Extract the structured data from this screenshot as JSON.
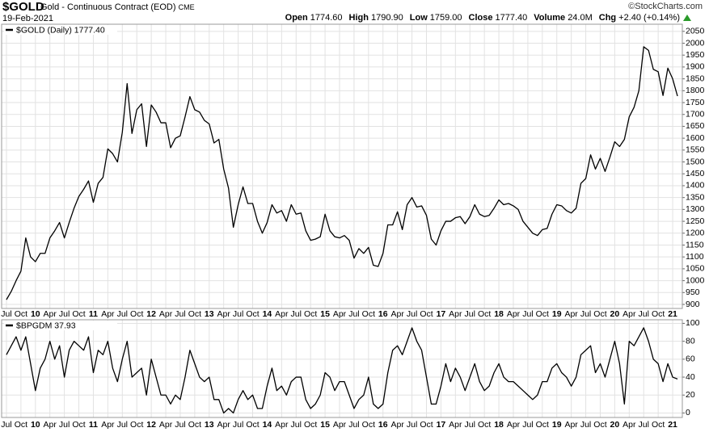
{
  "header": {
    "symbol": "$GOLD",
    "description": "Gold - Continuous Contract (EOD)",
    "exchange": "CME",
    "date": "19-Feb-2021",
    "copyright": "©StockCharts.com",
    "quote": [
      {
        "label": "Open",
        "value": "1774.60"
      },
      {
        "label": "High",
        "value": "1790.90"
      },
      {
        "label": "Low",
        "value": "1759.00"
      },
      {
        "label": "Close",
        "value": "1777.40"
      },
      {
        "label": "Volume",
        "value": "24.0M"
      },
      {
        "label": "Chg",
        "value": "+2.40 (+0.14%)"
      }
    ]
  },
  "chart_data": [
    {
      "type": "line",
      "grid": true,
      "xlim": [
        "2009-06",
        "2021-03"
      ],
      "xticks": [
        {
          "value": "2009-07",
          "label": "Jul"
        },
        {
          "value": "2009-10",
          "label": "Oct"
        },
        {
          "value": "2010-01",
          "label": "10"
        },
        {
          "value": "2010-04",
          "label": "Apr"
        },
        {
          "value": "2010-07",
          "label": "Jul"
        },
        {
          "value": "2010-10",
          "label": "Oct"
        },
        {
          "value": "2011-01",
          "label": "11"
        },
        {
          "value": "2011-04",
          "label": "Apr"
        },
        {
          "value": "2011-07",
          "label": "Jul"
        },
        {
          "value": "2011-10",
          "label": "Oct"
        },
        {
          "value": "2012-01",
          "label": "12"
        },
        {
          "value": "2012-04",
          "label": "Apr"
        },
        {
          "value": "2012-07",
          "label": "Jul"
        },
        {
          "value": "2012-10",
          "label": "Oct"
        },
        {
          "value": "2013-01",
          "label": "13"
        },
        {
          "value": "2013-04",
          "label": "Apr"
        },
        {
          "value": "2013-07",
          "label": "Jul"
        },
        {
          "value": "2013-10",
          "label": "Oct"
        },
        {
          "value": "2014-01",
          "label": "14"
        },
        {
          "value": "2014-04",
          "label": "Apr"
        },
        {
          "value": "2014-07",
          "label": "Jul"
        },
        {
          "value": "2014-10",
          "label": "Oct"
        },
        {
          "value": "2015-01",
          "label": "15"
        },
        {
          "value": "2015-04",
          "label": "Apr"
        },
        {
          "value": "2015-07",
          "label": "Jul"
        },
        {
          "value": "2015-10",
          "label": "Oct"
        },
        {
          "value": "2016-01",
          "label": "16"
        },
        {
          "value": "2016-04",
          "label": "Apr"
        },
        {
          "value": "2016-07",
          "label": "Jul"
        },
        {
          "value": "2016-10",
          "label": "Oct"
        },
        {
          "value": "2017-01",
          "label": "17"
        },
        {
          "value": "2017-04",
          "label": "Apr"
        },
        {
          "value": "2017-07",
          "label": "Jul"
        },
        {
          "value": "2017-10",
          "label": "Oct"
        },
        {
          "value": "2018-01",
          "label": "18"
        },
        {
          "value": "2018-04",
          "label": "Apr"
        },
        {
          "value": "2018-07",
          "label": "Jul"
        },
        {
          "value": "2018-10",
          "label": "Oct"
        },
        {
          "value": "2019-01",
          "label": "19"
        },
        {
          "value": "2019-04",
          "label": "Apr"
        },
        {
          "value": "2019-07",
          "label": "Jul"
        },
        {
          "value": "2019-10",
          "label": "Oct"
        },
        {
          "value": "2020-01",
          "label": "20"
        },
        {
          "value": "2020-04",
          "label": "Apr"
        },
        {
          "value": "2020-07",
          "label": "Jul"
        },
        {
          "value": "2020-10",
          "label": "Oct"
        },
        {
          "value": "2021-01",
          "label": "21"
        }
      ],
      "ylim": [
        883,
        2080
      ],
      "yticks": [
        900,
        950,
        1000,
        1050,
        1100,
        1150,
        1200,
        1250,
        1300,
        1350,
        1400,
        1450,
        1500,
        1550,
        1600,
        1650,
        1700,
        1750,
        1800,
        1850,
        1900,
        1950,
        2000,
        2050
      ],
      "x": [
        "2009-07",
        "2009-08",
        "2009-09",
        "2009-10",
        "2009-11",
        "2009-12",
        "2010-01",
        "2010-02",
        "2010-03",
        "2010-04",
        "2010-05",
        "2010-06",
        "2010-07",
        "2010-08",
        "2010-09",
        "2010-10",
        "2010-11",
        "2010-12",
        "2011-01",
        "2011-02",
        "2011-03",
        "2011-04",
        "2011-05",
        "2011-06",
        "2011-07",
        "2011-08",
        "2011-09",
        "2011-10",
        "2011-11",
        "2011-12",
        "2012-01",
        "2012-02",
        "2012-03",
        "2012-04",
        "2012-05",
        "2012-06",
        "2012-07",
        "2012-08",
        "2012-09",
        "2012-10",
        "2012-11",
        "2012-12",
        "2013-01",
        "2013-02",
        "2013-03",
        "2013-04",
        "2013-05",
        "2013-06",
        "2013-07",
        "2013-08",
        "2013-09",
        "2013-10",
        "2013-11",
        "2013-12",
        "2014-01",
        "2014-02",
        "2014-03",
        "2014-04",
        "2014-05",
        "2014-06",
        "2014-07",
        "2014-08",
        "2014-09",
        "2014-10",
        "2014-11",
        "2014-12",
        "2015-01",
        "2015-02",
        "2015-03",
        "2015-04",
        "2015-05",
        "2015-06",
        "2015-07",
        "2015-08",
        "2015-09",
        "2015-10",
        "2015-11",
        "2015-12",
        "2016-01",
        "2016-02",
        "2016-03",
        "2016-04",
        "2016-05",
        "2016-06",
        "2016-07",
        "2016-08",
        "2016-09",
        "2016-10",
        "2016-11",
        "2016-12",
        "2017-01",
        "2017-02",
        "2017-03",
        "2017-04",
        "2017-05",
        "2017-06",
        "2017-07",
        "2017-08",
        "2017-09",
        "2017-10",
        "2017-11",
        "2017-12",
        "2018-01",
        "2018-02",
        "2018-03",
        "2018-04",
        "2018-05",
        "2018-06",
        "2018-07",
        "2018-08",
        "2018-09",
        "2018-10",
        "2018-11",
        "2018-12",
        "2019-01",
        "2019-02",
        "2019-03",
        "2019-04",
        "2019-05",
        "2019-06",
        "2019-07",
        "2019-08",
        "2019-09",
        "2019-10",
        "2019-11",
        "2019-12",
        "2020-01",
        "2020-02",
        "2020-03",
        "2020-04",
        "2020-05",
        "2020-06",
        "2020-07",
        "2020-08",
        "2020-09",
        "2020-10",
        "2020-11",
        "2020-12",
        "2021-01",
        "2021-02"
      ],
      "series": [
        {
          "name": "$GOLD (Daily) 1777.40",
          "color": "#000000",
          "values": [
            920,
            955,
            1000,
            1040,
            1180,
            1100,
            1080,
            1115,
            1115,
            1180,
            1210,
            1245,
            1180,
            1245,
            1305,
            1355,
            1385,
            1420,
            1330,
            1410,
            1435,
            1555,
            1535,
            1500,
            1625,
            1830,
            1620,
            1720,
            1745,
            1565,
            1740,
            1710,
            1665,
            1665,
            1560,
            1600,
            1610,
            1690,
            1775,
            1720,
            1710,
            1675,
            1660,
            1580,
            1595,
            1470,
            1390,
            1225,
            1320,
            1395,
            1325,
            1325,
            1250,
            1200,
            1245,
            1320,
            1285,
            1295,
            1250,
            1320,
            1280,
            1285,
            1210,
            1170,
            1175,
            1185,
            1280,
            1210,
            1185,
            1180,
            1190,
            1170,
            1095,
            1135,
            1115,
            1140,
            1065,
            1060,
            1115,
            1235,
            1235,
            1290,
            1215,
            1320,
            1350,
            1310,
            1315,
            1275,
            1175,
            1150,
            1210,
            1250,
            1250,
            1265,
            1270,
            1240,
            1270,
            1320,
            1280,
            1270,
            1275,
            1305,
            1340,
            1320,
            1325,
            1315,
            1300,
            1250,
            1225,
            1200,
            1190,
            1215,
            1220,
            1280,
            1320,
            1315,
            1295,
            1285,
            1305,
            1410,
            1430,
            1530,
            1470,
            1515,
            1460,
            1520,
            1585,
            1565,
            1595,
            1690,
            1730,
            1800,
            1985,
            1970,
            1890,
            1880,
            1780,
            1895,
            1850,
            1777.4
          ]
        }
      ]
    },
    {
      "type": "line",
      "grid": true,
      "xlim": [
        "2009-06",
        "2021-03"
      ],
      "xticks": [
        {
          "value": "2009-07",
          "label": "Jul"
        },
        {
          "value": "2009-10",
          "label": "Oct"
        },
        {
          "value": "2010-01",
          "label": "10"
        },
        {
          "value": "2010-04",
          "label": "Apr"
        },
        {
          "value": "2010-07",
          "label": "Jul"
        },
        {
          "value": "2010-10",
          "label": "Oct"
        },
        {
          "value": "2011-01",
          "label": "11"
        },
        {
          "value": "2011-04",
          "label": "Apr"
        },
        {
          "value": "2011-07",
          "label": "Jul"
        },
        {
          "value": "2011-10",
          "label": "Oct"
        },
        {
          "value": "2012-01",
          "label": "12"
        },
        {
          "value": "2012-04",
          "label": "Apr"
        },
        {
          "value": "2012-07",
          "label": "Jul"
        },
        {
          "value": "2012-10",
          "label": "Oct"
        },
        {
          "value": "2013-01",
          "label": "13"
        },
        {
          "value": "2013-04",
          "label": "Apr"
        },
        {
          "value": "2013-07",
          "label": "Jul"
        },
        {
          "value": "2013-10",
          "label": "Oct"
        },
        {
          "value": "2014-01",
          "label": "14"
        },
        {
          "value": "2014-04",
          "label": "Apr"
        },
        {
          "value": "2014-07",
          "label": "Jul"
        },
        {
          "value": "2014-10",
          "label": "Oct"
        },
        {
          "value": "2015-01",
          "label": "15"
        },
        {
          "value": "2015-04",
          "label": "Apr"
        },
        {
          "value": "2015-07",
          "label": "Jul"
        },
        {
          "value": "2015-10",
          "label": "Oct"
        },
        {
          "value": "2016-01",
          "label": "16"
        },
        {
          "value": "2016-04",
          "label": "Apr"
        },
        {
          "value": "2016-07",
          "label": "Jul"
        },
        {
          "value": "2016-10",
          "label": "Oct"
        },
        {
          "value": "2017-01",
          "label": "17"
        },
        {
          "value": "2017-04",
          "label": "Apr"
        },
        {
          "value": "2017-07",
          "label": "Jul"
        },
        {
          "value": "2017-10",
          "label": "Oct"
        },
        {
          "value": "2018-01",
          "label": "18"
        },
        {
          "value": "2018-04",
          "label": "Apr"
        },
        {
          "value": "2018-07",
          "label": "Jul"
        },
        {
          "value": "2018-10",
          "label": "Oct"
        },
        {
          "value": "2019-01",
          "label": "19"
        },
        {
          "value": "2019-04",
          "label": "Apr"
        },
        {
          "value": "2019-07",
          "label": "Jul"
        },
        {
          "value": "2019-10",
          "label": "Oct"
        },
        {
          "value": "2020-01",
          "label": "20"
        },
        {
          "value": "2020-04",
          "label": "Apr"
        },
        {
          "value": "2020-07",
          "label": "Jul"
        },
        {
          "value": "2020-10",
          "label": "Oct"
        },
        {
          "value": "2021-01",
          "label": "21"
        }
      ],
      "ylim": [
        -5,
        104
      ],
      "yticks": [
        0,
        20,
        40,
        60,
        80,
        100
      ],
      "x": [
        "2009-07",
        "2009-08",
        "2009-09",
        "2009-10",
        "2009-11",
        "2009-12",
        "2010-01",
        "2010-02",
        "2010-03",
        "2010-04",
        "2010-05",
        "2010-06",
        "2010-07",
        "2010-08",
        "2010-09",
        "2010-10",
        "2010-11",
        "2010-12",
        "2011-01",
        "2011-02",
        "2011-03",
        "2011-04",
        "2011-05",
        "2011-06",
        "2011-07",
        "2011-08",
        "2011-09",
        "2011-10",
        "2011-11",
        "2011-12",
        "2012-01",
        "2012-02",
        "2012-03",
        "2012-04",
        "2012-05",
        "2012-06",
        "2012-07",
        "2012-08",
        "2012-09",
        "2012-10",
        "2012-11",
        "2012-12",
        "2013-01",
        "2013-02",
        "2013-03",
        "2013-04",
        "2013-05",
        "2013-06",
        "2013-07",
        "2013-08",
        "2013-09",
        "2013-10",
        "2013-11",
        "2013-12",
        "2014-01",
        "2014-02",
        "2014-03",
        "2014-04",
        "2014-05",
        "2014-06",
        "2014-07",
        "2014-08",
        "2014-09",
        "2014-10",
        "2014-11",
        "2014-12",
        "2015-01",
        "2015-02",
        "2015-03",
        "2015-04",
        "2015-05",
        "2015-06",
        "2015-07",
        "2015-08",
        "2015-09",
        "2015-10",
        "2015-11",
        "2015-12",
        "2016-01",
        "2016-02",
        "2016-03",
        "2016-04",
        "2016-05",
        "2016-06",
        "2016-07",
        "2016-08",
        "2016-09",
        "2016-10",
        "2016-11",
        "2016-12",
        "2017-01",
        "2017-02",
        "2017-03",
        "2017-04",
        "2017-05",
        "2017-06",
        "2017-07",
        "2017-08",
        "2017-09",
        "2017-10",
        "2017-11",
        "2017-12",
        "2018-01",
        "2018-02",
        "2018-03",
        "2018-04",
        "2018-05",
        "2018-06",
        "2018-07",
        "2018-08",
        "2018-09",
        "2018-10",
        "2018-11",
        "2018-12",
        "2019-01",
        "2019-02",
        "2019-03",
        "2019-04",
        "2019-05",
        "2019-06",
        "2019-07",
        "2019-08",
        "2019-09",
        "2019-10",
        "2019-11",
        "2019-12",
        "2020-01",
        "2020-02",
        "2020-03",
        "2020-04",
        "2020-05",
        "2020-06",
        "2020-07",
        "2020-08",
        "2020-09",
        "2020-10",
        "2020-11",
        "2020-12",
        "2021-01",
        "2021-02"
      ],
      "series": [
        {
          "name": "$BPGDM 37.93",
          "color": "#000000",
          "values": [
            65,
            75,
            85,
            70,
            85,
            55,
            25,
            50,
            60,
            80,
            60,
            75,
            40,
            70,
            80,
            75,
            70,
            85,
            45,
            70,
            65,
            80,
            50,
            35,
            60,
            80,
            40,
            45,
            50,
            20,
            60,
            40,
            20,
            20,
            10,
            20,
            15,
            40,
            70,
            55,
            40,
            35,
            40,
            15,
            15,
            0,
            5,
            0,
            15,
            25,
            15,
            20,
            5,
            5,
            30,
            50,
            25,
            30,
            20,
            35,
            40,
            40,
            15,
            5,
            10,
            20,
            45,
            40,
            25,
            35,
            35,
            20,
            5,
            15,
            20,
            40,
            10,
            5,
            10,
            45,
            70,
            75,
            65,
            80,
            95,
            80,
            70,
            40,
            10,
            10,
            30,
            55,
            35,
            50,
            40,
            25,
            40,
            55,
            35,
            25,
            30,
            45,
            55,
            40,
            35,
            35,
            30,
            25,
            20,
            15,
            20,
            35,
            35,
            50,
            55,
            45,
            40,
            30,
            40,
            65,
            70,
            75,
            45,
            55,
            40,
            60,
            80,
            55,
            10,
            80,
            75,
            85,
            95,
            80,
            60,
            55,
            35,
            55,
            40,
            37.93
          ]
        }
      ]
    }
  ]
}
